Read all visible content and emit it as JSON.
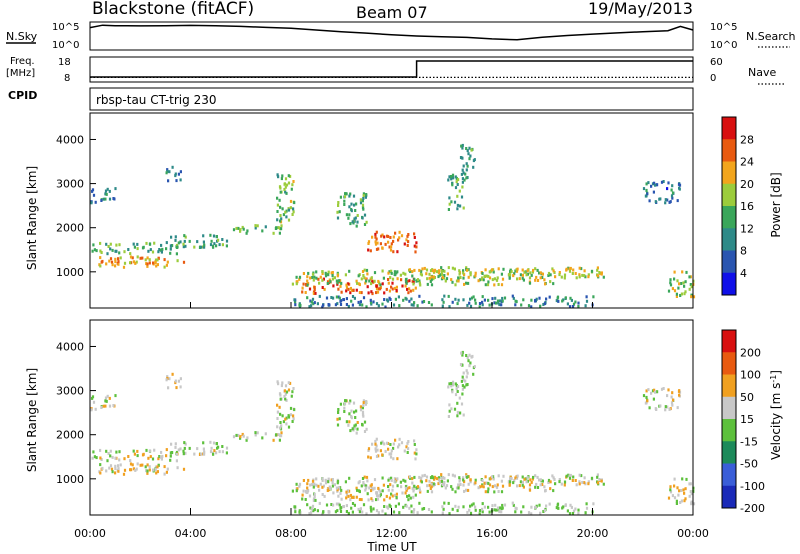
{
  "header": {
    "station": "Blackstone (fitACF)",
    "beam": "Beam 07",
    "date": "19/May/2013",
    "cpid": "rbsp-tau CT-trig 230"
  },
  "noise_panel": {
    "left_label": "N.Sky",
    "left_ticks": [
      "10^5",
      "10^0"
    ],
    "right_ticks": [
      "10^5",
      "10^0"
    ],
    "right_label": "N.Search",
    "series": [
      {
        "name": "N.Sky",
        "style": "solid",
        "color": "#000000",
        "x": [
          0,
          0.5,
          1,
          2,
          3,
          4,
          5,
          6,
          7,
          8,
          9,
          10,
          11,
          12,
          13,
          14,
          15,
          16,
          17,
          18,
          19,
          20,
          21,
          22,
          23,
          23.5,
          24
        ],
        "level": [
          0.85,
          0.95,
          0.93,
          0.92,
          0.93,
          0.94,
          0.93,
          0.9,
          0.86,
          0.82,
          0.75,
          0.68,
          0.62,
          0.55,
          0.5,
          0.47,
          0.44,
          0.38,
          0.34,
          0.45,
          0.52,
          0.58,
          0.63,
          0.68,
          0.72,
          0.9,
          0.75
        ]
      }
    ]
  },
  "freq_panel": {
    "left_label_1": "Freq.",
    "left_label_2": "[MHz]",
    "left_ticks": [
      "18",
      "8"
    ],
    "right_ticks": [
      "60",
      "0"
    ],
    "right_label": "Nave",
    "cpid_label": "CPID",
    "freq_x": [
      0,
      13,
      13,
      24
    ],
    "freq_level": [
      0.1,
      0.1,
      0.9,
      0.9
    ],
    "nave_level": 0.08
  },
  "power_panel": {
    "ylabel": "Slant Range [km]",
    "y_ticks": [
      "1000",
      "2000",
      "3000",
      "4000"
    ],
    "y_tick_values": [
      1000,
      2000,
      3000,
      4000
    ],
    "colorbar_label": "Power [dB]",
    "colorbar_ticks": [
      "4",
      "8",
      "12",
      "16",
      "20",
      "24",
      "28"
    ],
    "colorbar_colors": [
      "#1010e8",
      "#2a55b0",
      "#2e8a88",
      "#3aa65a",
      "#9ccc3c",
      "#f2a51c",
      "#e85a10",
      "#d81010"
    ]
  },
  "velocity_panel": {
    "ylabel": "Slant Range [km]",
    "y_ticks": [
      "1000",
      "2000",
      "3000",
      "4000"
    ],
    "y_tick_values": [
      1000,
      2000,
      3000,
      4000
    ],
    "colorbar_label": "Velocity [m s",
    "colorbar_label_sup": "-1",
    "colorbar_label_end": "]",
    "colorbar_ticks": [
      "200",
      "100",
      "50",
      "15",
      "-15",
      "-50",
      "-100",
      "-200"
    ],
    "colorbar_colors": [
      "#1a2ab8",
      "#3a5ed8",
      "#1c8a5a",
      "#5dc03c",
      "#c8c8c8",
      "#f0a020",
      "#e85a10",
      "#d81010"
    ]
  },
  "time_axis": {
    "tick_labels": [
      "00:00",
      "04:00",
      "08:00",
      "12:00",
      "16:00",
      "20:00",
      "00:00"
    ],
    "xlabel": "Time UT"
  },
  "chart_data": {
    "type": "heatmap",
    "title": "Blackstone (fitACF) Beam 07 19/May/2013",
    "xlabel": "Time UT",
    "ylabel": "Slant Range [km]",
    "xlim": [
      0,
      24
    ],
    "ylim": [
      180,
      4600
    ],
    "panels": [
      {
        "name": "Power [dB]",
        "clim": [
          0,
          32
        ]
      },
      {
        "name": "Velocity [m s-1]",
        "clim": [
          -250,
          250
        ]
      }
    ],
    "regions": [
      {
        "t0": 0.0,
        "t1": 3.8,
        "r0": 1100,
        "r1": 1350,
        "power": 22,
        "velocity": -10
      },
      {
        "t0": 0.0,
        "t1": 3.5,
        "r0": 1400,
        "r1": 1650,
        "power": 14,
        "velocity": 5
      },
      {
        "t0": 3.0,
        "t1": 5.5,
        "r0": 1550,
        "r1": 1850,
        "power": 12,
        "velocity": 5
      },
      {
        "t0": 5.5,
        "t1": 7.6,
        "r0": 1850,
        "r1": 2050,
        "power": 14,
        "velocity": 0
      },
      {
        "t0": 7.4,
        "t1": 8.1,
        "r0": 2100,
        "r1": 3300,
        "power": 16,
        "velocity": 10
      },
      {
        "t0": 0.0,
        "t1": 1.0,
        "r0": 2550,
        "r1": 2900,
        "power": 8,
        "velocity": 0
      },
      {
        "t0": 3.0,
        "t1": 3.6,
        "r0": 3050,
        "r1": 3400,
        "power": 9,
        "velocity": -20
      },
      {
        "t0": 8.0,
        "t1": 13.0,
        "r0": 500,
        "r1": 850,
        "power": 26,
        "velocity": 0
      },
      {
        "t0": 8.0,
        "t1": 18.5,
        "r0": 700,
        "r1": 1050,
        "power": 17,
        "velocity": 0
      },
      {
        "t0": 13.0,
        "t1": 20.5,
        "r0": 850,
        "r1": 1100,
        "power": 19,
        "velocity": 0
      },
      {
        "t0": 9.8,
        "t1": 11.0,
        "r0": 2000,
        "r1": 2800,
        "power": 13,
        "velocity": 10
      },
      {
        "t0": 11.0,
        "t1": 13.0,
        "r0": 1450,
        "r1": 1900,
        "power": 25,
        "velocity": 0
      },
      {
        "t0": 14.2,
        "t1": 14.9,
        "r0": 2400,
        "r1": 3200,
        "power": 13,
        "velocity": 20
      },
      {
        "t0": 14.7,
        "t1": 15.3,
        "r0": 3100,
        "r1": 3900,
        "power": 12,
        "velocity": 15
      },
      {
        "t0": 22.0,
        "t1": 23.5,
        "r0": 2550,
        "r1": 3050,
        "power": 8,
        "velocity": 0
      },
      {
        "t0": 23.0,
        "t1": 24.0,
        "r0": 400,
        "r1": 1000,
        "power": 18,
        "velocity": -10
      },
      {
        "t0": 8.0,
        "t1": 20.0,
        "r0": 200,
        "r1": 450,
        "power": 10,
        "velocity": 20
      }
    ]
  }
}
